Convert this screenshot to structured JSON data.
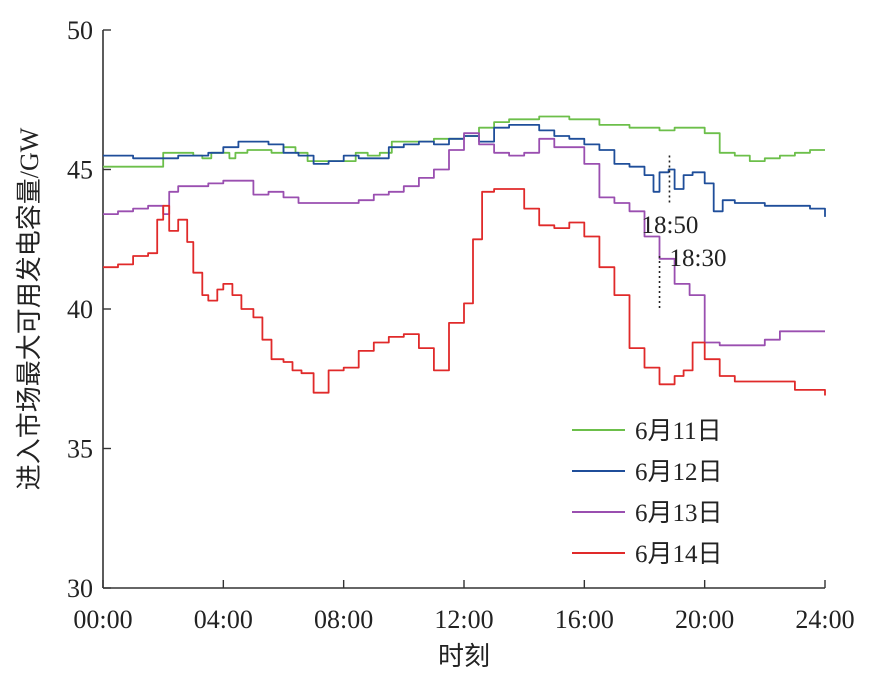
{
  "chart_data": {
    "type": "line",
    "xlabel": "时刻",
    "ylabel": "进入市场最大可用发电容量/GW",
    "xlim": [
      0,
      24
    ],
    "ylim": [
      30,
      50
    ],
    "xticks": [
      {
        "value": 0,
        "label": "00:00"
      },
      {
        "value": 4,
        "label": "04:00"
      },
      {
        "value": 8,
        "label": "08:00"
      },
      {
        "value": 12,
        "label": "12:00"
      },
      {
        "value": 16,
        "label": "16:00"
      },
      {
        "value": 20,
        "label": "20:00"
      },
      {
        "value": 24,
        "label": "24:00"
      }
    ],
    "yticks": [
      {
        "value": 30,
        "label": "30"
      },
      {
        "value": 35,
        "label": "35"
      },
      {
        "value": 40,
        "label": "40"
      },
      {
        "value": 45,
        "label": "45"
      },
      {
        "value": 50,
        "label": "50"
      }
    ],
    "legend_position": "lower-right",
    "series": [
      {
        "name": "6月11日",
        "color": "#6cbf4a",
        "x": [
          0,
          0.5,
          1,
          1.5,
          1.9,
          2.0,
          2.5,
          3.0,
          3.3,
          3.6,
          4.0,
          4.2,
          4.4,
          4.8,
          5.2,
          5.6,
          6.0,
          6.4,
          6.8,
          7.2,
          7.6,
          8.0,
          8.4,
          8.8,
          9.2,
          9.6,
          10.0,
          10.5,
          11.0,
          11.5,
          12.0,
          12.5,
          13.0,
          13.5,
          14.0,
          14.5,
          15.0,
          15.5,
          16.0,
          16.5,
          17.0,
          17.5,
          18.0,
          18.5,
          19.0,
          19.5,
          20.0,
          20.5,
          21.0,
          21.5,
          22.0,
          22.5,
          23.0,
          23.5,
          24.0
        ],
        "y": [
          45.1,
          45.1,
          45.1,
          45.1,
          45.1,
          45.6,
          45.6,
          45.5,
          45.4,
          45.6,
          45.6,
          45.4,
          45.6,
          45.7,
          45.7,
          45.6,
          45.8,
          45.6,
          45.3,
          45.3,
          45.3,
          45.3,
          45.6,
          45.5,
          45.6,
          46.0,
          46.0,
          46.0,
          46.1,
          46.1,
          46.2,
          46.5,
          46.7,
          46.8,
          46.8,
          46.9,
          46.9,
          46.8,
          46.8,
          46.6,
          46.6,
          46.5,
          46.5,
          46.4,
          46.5,
          46.5,
          46.3,
          45.6,
          45.5,
          45.3,
          45.4,
          45.5,
          45.6,
          45.7,
          45.7
        ]
      },
      {
        "name": "6月12日",
        "color": "#1f4e9a",
        "x": [
          0,
          0.5,
          1,
          1.5,
          2.0,
          2.5,
          3.0,
          3.5,
          4.0,
          4.5,
          5.0,
          5.5,
          6.0,
          6.5,
          7.0,
          7.5,
          8.0,
          8.5,
          9.0,
          9.5,
          10.0,
          10.5,
          11.0,
          11.5,
          12.0,
          12.5,
          13.0,
          13.5,
          14.0,
          14.5,
          15.0,
          15.5,
          16.0,
          16.5,
          17.0,
          17.5,
          18.0,
          18.3,
          18.5,
          18.8,
          19.0,
          19.3,
          19.6,
          20.0,
          20.3,
          20.6,
          21.0,
          21.5,
          22.0,
          22.5,
          23.0,
          23.5,
          24.0
        ],
        "y": [
          45.5,
          45.5,
          45.4,
          45.4,
          45.4,
          45.5,
          45.5,
          45.6,
          45.8,
          46.0,
          46.0,
          45.9,
          45.6,
          45.5,
          45.2,
          45.3,
          45.5,
          45.4,
          45.4,
          45.8,
          45.9,
          46.0,
          45.9,
          46.1,
          46.2,
          46.0,
          46.5,
          46.6,
          46.6,
          46.4,
          46.2,
          46.1,
          45.9,
          45.7,
          45.2,
          45.1,
          44.8,
          44.2,
          44.9,
          45.0,
          44.3,
          44.8,
          44.9,
          44.5,
          43.5,
          43.9,
          43.8,
          43.8,
          43.7,
          43.7,
          43.7,
          43.6,
          43.3
        ]
      },
      {
        "name": "6月13日",
        "color": "#9a4fb0",
        "x": [
          0,
          0.5,
          1,
          1.5,
          2.0,
          2.2,
          2.5,
          3.0,
          3.5,
          4.0,
          4.5,
          5.0,
          5.5,
          6.0,
          6.5,
          7.0,
          7.5,
          8.0,
          8.5,
          9.0,
          9.5,
          10.0,
          10.5,
          11.0,
          11.5,
          12.0,
          12.5,
          13.0,
          13.5,
          14.0,
          14.5,
          15.0,
          15.5,
          16.0,
          16.5,
          17.0,
          17.5,
          18.0,
          18.5,
          19.0,
          19.5,
          20.0,
          20.5,
          21.0,
          21.5,
          22.0,
          22.5,
          23.0,
          23.5,
          24.0
        ],
        "y": [
          43.4,
          43.5,
          43.6,
          43.7,
          43.4,
          44.2,
          44.4,
          44.4,
          44.5,
          44.6,
          44.6,
          44.1,
          44.2,
          44.0,
          43.8,
          43.8,
          43.8,
          43.8,
          43.9,
          44.1,
          44.2,
          44.4,
          44.7,
          45.0,
          45.7,
          46.3,
          45.9,
          45.6,
          45.5,
          45.6,
          46.1,
          45.8,
          45.8,
          45.2,
          44.0,
          43.8,
          43.5,
          42.6,
          41.8,
          40.9,
          40.5,
          38.8,
          38.7,
          38.7,
          38.7,
          38.9,
          39.2,
          39.2,
          39.2,
          39.2
        ]
      },
      {
        "name": "6月14日",
        "color": "#e02a2a",
        "x": [
          0,
          0.5,
          1.0,
          1.5,
          1.8,
          2.0,
          2.2,
          2.5,
          2.8,
          3.0,
          3.3,
          3.5,
          3.8,
          4.0,
          4.3,
          4.6,
          5.0,
          5.3,
          5.6,
          6.0,
          6.3,
          6.6,
          7.0,
          7.5,
          8.0,
          8.5,
          9.0,
          9.5,
          10.0,
          10.5,
          11.0,
          11.5,
          12.0,
          12.3,
          12.6,
          13.0,
          13.5,
          14.0,
          14.5,
          15.0,
          15.5,
          16.0,
          16.5,
          17.0,
          17.5,
          18.0,
          18.5,
          19.0,
          19.3,
          19.6,
          20.0,
          20.5,
          21.0,
          21.5,
          22.0,
          22.5,
          23.0,
          23.5,
          24.0
        ],
        "y": [
          41.5,
          41.6,
          41.9,
          42.0,
          43.2,
          43.7,
          42.8,
          43.2,
          42.4,
          41.3,
          40.5,
          40.3,
          40.7,
          40.9,
          40.5,
          40.0,
          39.7,
          38.9,
          38.2,
          38.1,
          37.8,
          37.7,
          37.0,
          37.8,
          37.9,
          38.5,
          38.8,
          39.0,
          39.1,
          38.6,
          37.8,
          39.5,
          40.2,
          42.5,
          44.2,
          44.3,
          44.3,
          43.6,
          43.0,
          42.9,
          43.1,
          42.6,
          41.5,
          40.5,
          38.6,
          37.9,
          37.3,
          37.6,
          37.8,
          38.8,
          38.2,
          37.6,
          37.4,
          37.4,
          37.4,
          37.4,
          37.1,
          37.1,
          36.9
        ]
      }
    ],
    "annotations": [
      {
        "label": "18:50",
        "x": 18.83,
        "y_from": 43.8,
        "y_to": 45.5
      },
      {
        "label": "18:30",
        "x": 18.5,
        "y_from": 40.0,
        "y_to": 41.9
      }
    ]
  }
}
